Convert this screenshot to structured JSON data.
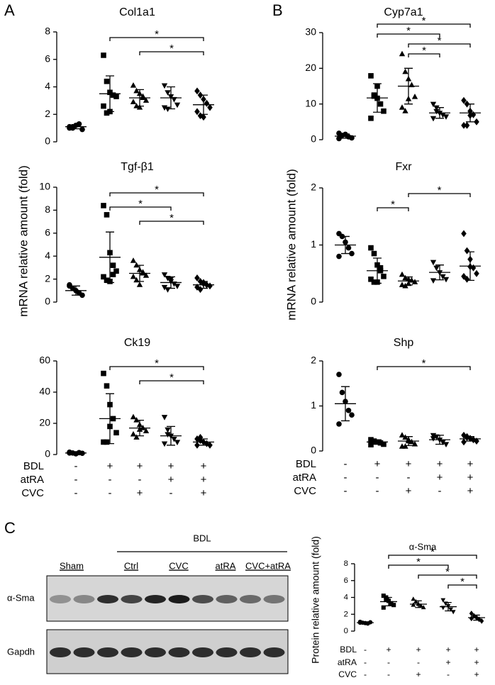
{
  "panel_labels": [
    "A",
    "B",
    "C"
  ],
  "chart_data": [
    {
      "type": "dot",
      "title": "Col1a1",
      "categories": [
        null,
        null,
        null,
        null,
        null
      ],
      "ylim": [
        0,
        8
      ],
      "yticks": [
        0,
        2,
        4,
        6,
        8
      ],
      "groups": [
        {
          "marker": "circle",
          "points": [
            1.0,
            1.1,
            1.2,
            1.3,
            0.9,
            1.1,
            1.0
          ],
          "mean": 1.1,
          "sd": 0.15
        },
        {
          "marker": "square",
          "points": [
            6.3,
            4.4,
            3.6,
            3.4,
            3.3,
            2.6,
            2.1,
            2.2
          ],
          "mean": 3.5,
          "sd": 1.3
        },
        {
          "marker": "triangle",
          "points": [
            4.1,
            3.7,
            3.5,
            3.2,
            3.0,
            2.9,
            2.6,
            2.5,
            3.3
          ],
          "mean": 3.2,
          "sd": 0.6
        },
        {
          "marker": "triangle-down",
          "points": [
            4.1,
            3.6,
            3.3,
            3.1,
            2.7,
            2.5,
            2.4
          ],
          "mean": 3.2,
          "sd": 0.8
        },
        {
          "marker": "diamond",
          "points": [
            3.7,
            3.4,
            3.1,
            2.8,
            2.5,
            2.2,
            1.9,
            1.8
          ],
          "mean": 2.7,
          "sd": 0.7
        }
      ],
      "brackets": [
        {
          "from": 1,
          "to": 4,
          "label": "*"
        },
        {
          "from": 2,
          "to": 4,
          "label": "*"
        }
      ]
    },
    {
      "type": "dot",
      "title": "Tgf-β1",
      "ylabel": "mRNA relative amount (fold)",
      "categories": [
        null,
        null,
        null,
        null,
        null
      ],
      "ylim": [
        0,
        10
      ],
      "yticks": [
        0,
        2,
        4,
        6,
        8,
        10
      ],
      "groups": [
        {
          "marker": "circle",
          "points": [
            1.4,
            1.2,
            1.0,
            0.8,
            0.6,
            1.5
          ],
          "mean": 1.0,
          "sd": 0.4
        },
        {
          "marker": "square",
          "points": [
            8.4,
            7.6,
            4.3,
            3.2,
            2.7,
            2.2,
            1.9,
            1.8,
            2.4
          ],
          "mean": 3.9,
          "sd": 2.2
        },
        {
          "marker": "triangle",
          "points": [
            3.6,
            3.2,
            2.8,
            2.5,
            2.3,
            2.2,
            1.9,
            1.5,
            2.6
          ],
          "mean": 2.5,
          "sd": 0.7
        },
        {
          "marker": "triangle-down",
          "points": [
            2.4,
            2.1,
            1.8,
            1.6,
            1.4,
            1.3,
            1.1,
            2.0
          ],
          "mean": 1.7,
          "sd": 0.5
        },
        {
          "marker": "diamond",
          "points": [
            2.1,
            1.8,
            1.6,
            1.5,
            1.4,
            1.3,
            1.1,
            1.7
          ],
          "mean": 1.5,
          "sd": 0.3
        }
      ],
      "brackets": [
        {
          "from": 1,
          "to": 4,
          "label": "*"
        },
        {
          "from": 1,
          "to": 3,
          "label": "*"
        },
        {
          "from": 2,
          "to": 4,
          "label": "*"
        }
      ]
    },
    {
      "type": "dot",
      "title": "Ck19",
      "categories": [
        null,
        null,
        null,
        null,
        null
      ],
      "ylim": [
        0,
        60
      ],
      "yticks": [
        0,
        20,
        40,
        60
      ],
      "groups": [
        {
          "marker": "circle",
          "points": [
            1.5,
            1.0,
            0.5,
            1.2,
            0.8,
            1.0
          ],
          "mean": 1,
          "sd": 0.5
        },
        {
          "marker": "square",
          "points": [
            52,
            44,
            32,
            23,
            14,
            8,
            8,
            18
          ],
          "mean": 23,
          "sd": 16
        },
        {
          "marker": "triangle",
          "points": [
            24,
            22,
            19,
            17,
            15,
            13,
            11,
            16
          ],
          "mean": 17,
          "sd": 5
        },
        {
          "marker": "triangle-down",
          "points": [
            24,
            16,
            12,
            10,
            8,
            7,
            13
          ],
          "mean": 12,
          "sd": 6
        },
        {
          "marker": "diamond",
          "points": [
            10,
            9,
            8,
            7,
            6,
            6,
            11
          ],
          "mean": 8,
          "sd": 2
        }
      ],
      "brackets": [
        {
          "from": 1,
          "to": 4,
          "label": "*"
        },
        {
          "from": 2,
          "to": 4,
          "label": "*"
        }
      ],
      "conditions": {
        "rows": [
          "BDL",
          "atRA",
          "CVC"
        ],
        "signs": [
          [
            "-",
            "+",
            "+",
            "+",
            "+"
          ],
          [
            "-",
            "-",
            "-",
            "+",
            "+"
          ],
          [
            "-",
            "-",
            "+",
            "-",
            "+"
          ]
        ]
      }
    },
    {
      "type": "dot",
      "title": "Cyp7a1",
      "categories": [
        null,
        null,
        null,
        null,
        null
      ],
      "ylim": [
        0,
        30
      ],
      "yticks": [
        0,
        10,
        20,
        30
      ],
      "groups": [
        {
          "marker": "circle",
          "points": [
            0.3,
            1.2,
            1.5,
            0.8,
            0.5,
            1.8
          ],
          "mean": 1,
          "sd": 0.6
        },
        {
          "marker": "square",
          "points": [
            17.9,
            12.2,
            11.6,
            10,
            8,
            6,
            12.5,
            15
          ],
          "mean": 11.7,
          "sd": 4
        },
        {
          "marker": "triangle",
          "points": [
            24,
            19,
            17,
            15.3,
            12,
            9,
            8,
            11.4
          ],
          "mean": 15,
          "sd": 5
        },
        {
          "marker": "triangle-down",
          "points": [
            10,
            9,
            7.5,
            7,
            6.5,
            6,
            8
          ],
          "mean": 7.5,
          "sd": 1.5
        },
        {
          "marker": "diamond",
          "points": [
            11,
            10,
            8,
            7,
            5,
            4,
            4,
            6.8
          ],
          "mean": 7.5,
          "sd": 2.5
        }
      ],
      "brackets": [
        {
          "from": 1,
          "to": 4,
          "label": "*"
        },
        {
          "from": 1,
          "to": 3,
          "label": "*"
        },
        {
          "from": 2,
          "to": 4,
          "label": "*"
        },
        {
          "from": 2,
          "to": 3,
          "label": "*"
        }
      ]
    },
    {
      "type": "dot",
      "title": "Fxr",
      "ylabel": "mRNA relative amount (fold)",
      "categories": [
        null,
        null,
        null,
        null,
        null
      ],
      "ylim": [
        0,
        2
      ],
      "yticks": [
        0,
        1,
        2
      ],
      "groups": [
        {
          "marker": "circle",
          "points": [
            1.2,
            1.15,
            1.05,
            0.95,
            0.85,
            0.8
          ],
          "mean": 1.0,
          "sd": 0.15
        },
        {
          "marker": "square",
          "points": [
            0.95,
            0.85,
            0.65,
            0.55,
            0.45,
            0.4,
            0.35,
            0.35,
            0.6
          ],
          "mean": 0.55,
          "sd": 0.22
        },
        {
          "marker": "triangle",
          "points": [
            0.48,
            0.42,
            0.4,
            0.38,
            0.35,
            0.3,
            0.28,
            0.32
          ],
          "mean": 0.37,
          "sd": 0.07
        },
        {
          "marker": "triangle-down",
          "points": [
            0.7,
            0.6,
            0.52,
            0.45,
            0.4,
            0.38
          ],
          "mean": 0.52,
          "sd": 0.13
        },
        {
          "marker": "diamond",
          "points": [
            1.2,
            0.9,
            0.75,
            0.6,
            0.5,
            0.45,
            0.4,
            0.62
          ],
          "mean": 0.63,
          "sd": 0.25
        }
      ],
      "brackets": [
        {
          "from": 2,
          "to": 4,
          "label": "*"
        },
        {
          "from": 1,
          "to": 2,
          "label": "*"
        }
      ]
    },
    {
      "type": "dot",
      "title": "Shp",
      "categories": [
        null,
        null,
        null,
        null,
        null
      ],
      "ylim": [
        0,
        2
      ],
      "yticks": [
        0,
        1,
        2
      ],
      "groups": [
        {
          "marker": "circle",
          "points": [
            1.7,
            1.3,
            1.1,
            0.9,
            0.8,
            0.6
          ],
          "mean": 1.05,
          "sd": 0.38
        },
        {
          "marker": "square",
          "points": [
            0.25,
            0.22,
            0.2,
            0.18,
            0.15,
            0.14,
            0.2
          ],
          "mean": 0.2,
          "sd": 0.05
        },
        {
          "marker": "triangle",
          "points": [
            0.35,
            0.3,
            0.25,
            0.2,
            0.15,
            0.1,
            0.1,
            0.22
          ],
          "mean": 0.22,
          "sd": 0.1
        },
        {
          "marker": "triangle-down",
          "points": [
            0.35,
            0.32,
            0.25,
            0.2,
            0.15,
            0.28
          ],
          "mean": 0.25,
          "sd": 0.1
        },
        {
          "marker": "diamond",
          "points": [
            0.35,
            0.32,
            0.28,
            0.25,
            0.22,
            0.2,
            0.3
          ],
          "mean": 0.27,
          "sd": 0.05
        }
      ],
      "brackets": [
        {
          "from": 1,
          "to": 4,
          "label": "*"
        }
      ],
      "conditions": {
        "rows": [
          "BDL",
          "atRA",
          "CVC"
        ],
        "signs": [
          [
            "-",
            "+",
            "+",
            "+",
            "+"
          ],
          [
            "-",
            "-",
            "-",
            "+",
            "+"
          ],
          [
            "-",
            "-",
            "+",
            "-",
            "+"
          ]
        ]
      }
    },
    {
      "type": "dot",
      "title": "α-Sma",
      "ylabel": "Protein relative amount (fold)",
      "categories": [
        null,
        null,
        null,
        null,
        null
      ],
      "ylim": [
        0,
        8
      ],
      "yticks": [
        0,
        2,
        4,
        6,
        8
      ],
      "groups": [
        {
          "marker": "circle",
          "points": [
            1.1,
            1.0,
            0.95,
            0.9,
            1.05,
            1.0
          ],
          "mean": 1.0,
          "sd": 0.1
        },
        {
          "marker": "square",
          "points": [
            4.2,
            4.0,
            3.6,
            3.3,
            3.1,
            2.8,
            3.7
          ],
          "mean": 3.5,
          "sd": 0.5
        },
        {
          "marker": "triangle",
          "points": [
            3.8,
            3.5,
            3.2,
            3.0,
            2.8,
            3.1
          ],
          "mean": 3.2,
          "sd": 0.4
        },
        {
          "marker": "triangle-down",
          "points": [
            3.7,
            3.3,
            3.0,
            2.6,
            2.3,
            2.8
          ],
          "mean": 2.9,
          "sd": 0.5
        },
        {
          "marker": "diamond",
          "points": [
            2.1,
            1.8,
            1.6,
            1.4,
            1.2,
            1.5
          ],
          "mean": 1.6,
          "sd": 0.3
        }
      ],
      "brackets": [
        {
          "from": 1,
          "to": 4,
          "label": "*"
        },
        {
          "from": 1,
          "to": 3,
          "label": "*"
        },
        {
          "from": 2,
          "to": 4,
          "label": "*"
        },
        {
          "from": 3,
          "to": 4,
          "label": "*"
        }
      ],
      "conditions": {
        "rows": [
          "BDL",
          "atRA",
          "CVC"
        ],
        "signs": [
          [
            "-",
            "+",
            "+",
            "+",
            "+"
          ],
          [
            "-",
            "-",
            "-",
            "+",
            "+"
          ],
          [
            "-",
            "-",
            "+",
            "-",
            "+"
          ]
        ]
      }
    }
  ],
  "blot": {
    "group_label": "BDL",
    "lanes": [
      "Sham",
      "Ctrl",
      "CVC",
      "atRA",
      "CVC+atRA"
    ],
    "rows": [
      "α-Sma",
      "Gapdh"
    ]
  }
}
